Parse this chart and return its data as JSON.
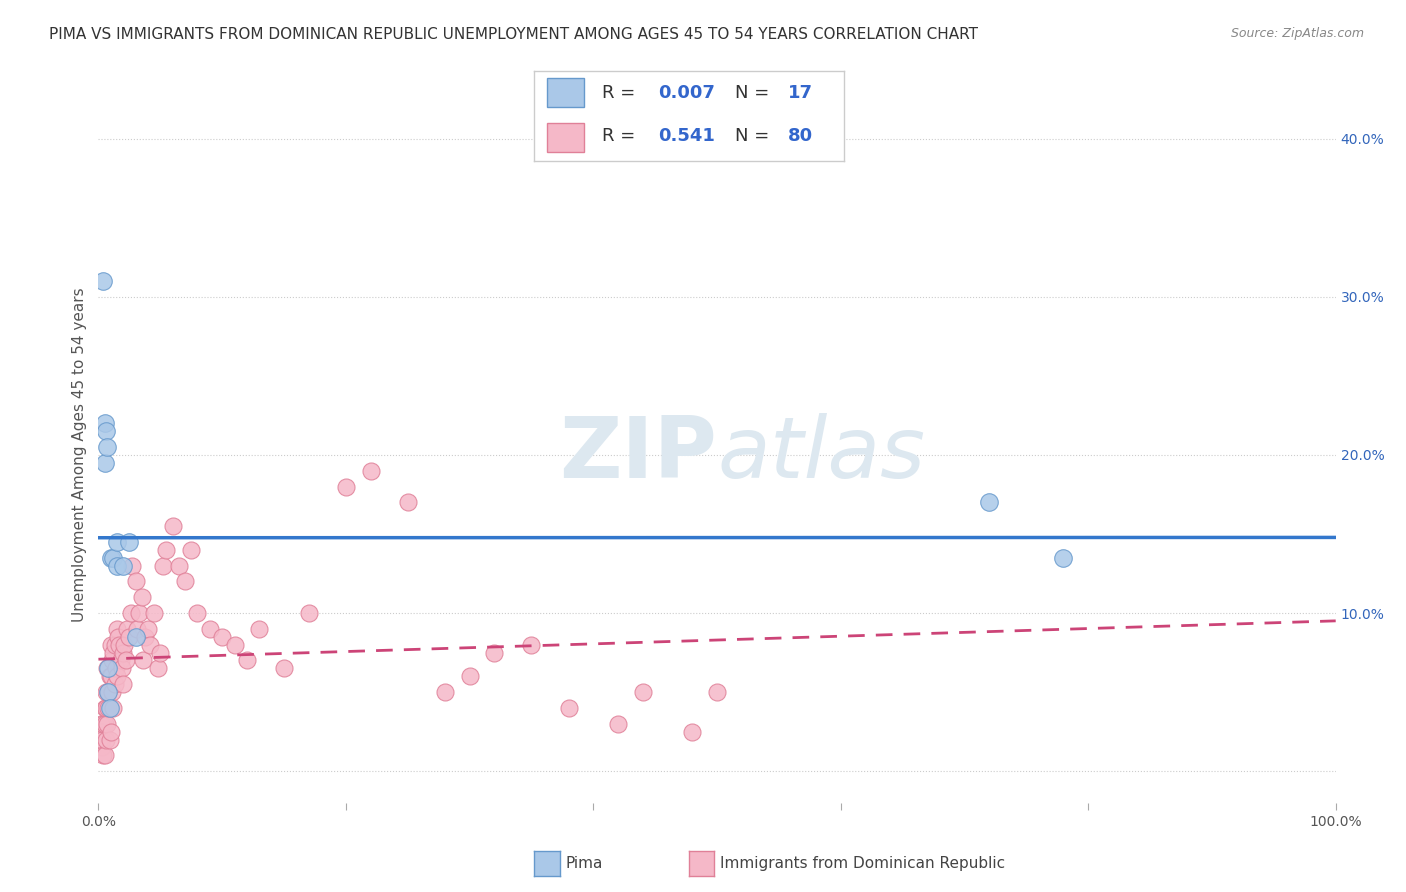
{
  "title": "PIMA VS IMMIGRANTS FROM DOMINICAN REPUBLIC UNEMPLOYMENT AMONG AGES 45 TO 54 YEARS CORRELATION CHART",
  "source": "Source: ZipAtlas.com",
  "ylabel": "Unemployment Among Ages 45 to 54 years",
  "xlim": [
    0,
    1.0
  ],
  "ylim": [
    -0.02,
    0.42
  ],
  "x_ticks": [
    0.0,
    0.2,
    0.4,
    0.6,
    0.8,
    1.0
  ],
  "x_tick_labels": [
    "0.0%",
    "",
    "",
    "",
    "",
    "100.0%"
  ],
  "y_ticks_right": [
    0.0,
    0.1,
    0.2,
    0.3,
    0.4
  ],
  "y_tick_labels_right": [
    "",
    "10.0%",
    "20.0%",
    "30.0%",
    "40.0%"
  ],
  "pima_color": "#aac8e8",
  "pima_edge_color": "#6699cc",
  "immigrants_color": "#f5b8c8",
  "immigrants_edge_color": "#e08098",
  "trend_pima_color": "#3377cc",
  "trend_immigrants_color": "#cc4477",
  "watermark_color": "#dde8f0",
  "R_pima": 0.007,
  "N_pima": 17,
  "R_immigrants": 0.541,
  "N_immigrants": 80,
  "pima_x": [
    0.004,
    0.005,
    0.005,
    0.006,
    0.007,
    0.008,
    0.008,
    0.009,
    0.01,
    0.012,
    0.015,
    0.015,
    0.02,
    0.025,
    0.03,
    0.72,
    0.78
  ],
  "pima_y": [
    0.31,
    0.22,
    0.195,
    0.215,
    0.205,
    0.065,
    0.05,
    0.04,
    0.135,
    0.135,
    0.13,
    0.145,
    0.13,
    0.145,
    0.085,
    0.17,
    0.135
  ],
  "immigrants_x": [
    0.001,
    0.002,
    0.002,
    0.003,
    0.003,
    0.004,
    0.004,
    0.005,
    0.005,
    0.005,
    0.006,
    0.006,
    0.006,
    0.007,
    0.007,
    0.008,
    0.008,
    0.009,
    0.009,
    0.01,
    0.01,
    0.01,
    0.011,
    0.011,
    0.012,
    0.012,
    0.013,
    0.013,
    0.014,
    0.015,
    0.015,
    0.016,
    0.017,
    0.018,
    0.019,
    0.02,
    0.02,
    0.021,
    0.022,
    0.023,
    0.025,
    0.026,
    0.027,
    0.03,
    0.031,
    0.033,
    0.035,
    0.036,
    0.038,
    0.04,
    0.042,
    0.045,
    0.048,
    0.05,
    0.052,
    0.055,
    0.06,
    0.065,
    0.07,
    0.075,
    0.08,
    0.09,
    0.1,
    0.11,
    0.12,
    0.13,
    0.15,
    0.17,
    0.2,
    0.22,
    0.25,
    0.28,
    0.3,
    0.32,
    0.35,
    0.38,
    0.42,
    0.44,
    0.48,
    0.5
  ],
  "immigrants_y": [
    0.02,
    0.03,
    0.025,
    0.015,
    0.02,
    0.03,
    0.01,
    0.04,
    0.03,
    0.01,
    0.05,
    0.04,
    0.02,
    0.065,
    0.03,
    0.05,
    0.04,
    0.06,
    0.02,
    0.08,
    0.06,
    0.025,
    0.07,
    0.05,
    0.075,
    0.04,
    0.08,
    0.055,
    0.065,
    0.09,
    0.06,
    0.085,
    0.08,
    0.07,
    0.065,
    0.075,
    0.055,
    0.08,
    0.07,
    0.09,
    0.085,
    0.1,
    0.13,
    0.12,
    0.09,
    0.1,
    0.11,
    0.07,
    0.085,
    0.09,
    0.08,
    0.1,
    0.065,
    0.075,
    0.13,
    0.14,
    0.155,
    0.13,
    0.12,
    0.14,
    0.1,
    0.09,
    0.085,
    0.08,
    0.07,
    0.09,
    0.065,
    0.1,
    0.18,
    0.19,
    0.17,
    0.05,
    0.06,
    0.075,
    0.08,
    0.04,
    0.03,
    0.05,
    0.025,
    0.05
  ],
  "background_color": "#ffffff",
  "grid_color": "#cccccc",
  "title_fontsize": 11,
  "axis_label_fontsize": 11,
  "tick_fontsize": 10,
  "legend_fontsize": 13
}
